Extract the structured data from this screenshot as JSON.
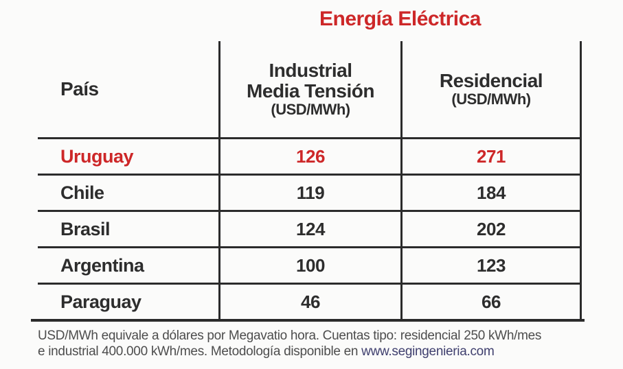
{
  "title": "Energía Eléctrica",
  "colors": {
    "accent_red": "#cd2728",
    "text_dark": "#2d2d2d",
    "border": "#2b2b2b",
    "footer_text": "#4d4d4d",
    "link_blue": "#3f3f6e",
    "background": "#fbfbfa"
  },
  "table": {
    "columns": [
      {
        "label": "País"
      },
      {
        "label": "Industrial",
        "label2": "Media Tensión",
        "unit": "(USD/MWh)"
      },
      {
        "label": "Residencial",
        "unit": "(USD/MWh)"
      }
    ],
    "rows": [
      {
        "country": "Uruguay",
        "industrial": "126",
        "residencial": "271",
        "highlight": true
      },
      {
        "country": "Chile",
        "industrial": "119",
        "residencial": "184",
        "highlight": false
      },
      {
        "country": "Brasil",
        "industrial": "124",
        "residencial": "202",
        "highlight": false
      },
      {
        "country": "Argentina",
        "industrial": "100",
        "residencial": "123",
        "highlight": false
      },
      {
        "country": "Paraguay",
        "industrial": "46",
        "residencial": "66",
        "highlight": false
      }
    ]
  },
  "footer": {
    "line1": "USD/MWh equivale a dólares por Megavatio hora. Cuentas tipo: residencial 250 kWh/mes",
    "line2_prefix": "e industrial 400.000 kWh/mes. Metodología disponible en ",
    "link": "www.segingenieria.com"
  },
  "chart_data": {
    "type": "table",
    "title": "Energía Eléctrica",
    "columns": [
      "País",
      "Industrial Media Tensión (USD/MWh)",
      "Residencial (USD/MWh)"
    ],
    "rows": [
      [
        "Uruguay",
        126,
        271
      ],
      [
        "Chile",
        119,
        184
      ],
      [
        "Brasil",
        124,
        202
      ],
      [
        "Argentina",
        100,
        123
      ],
      [
        "Paraguay",
        46,
        66
      ]
    ],
    "highlighted_row": "Uruguay",
    "footnote": "USD/MWh equivale a dólares por Megavatio hora. Cuentas tipo: residencial 250 kWh/mes e industrial 400.000 kWh/mes. Metodología disponible en www.segingenieria.com"
  }
}
